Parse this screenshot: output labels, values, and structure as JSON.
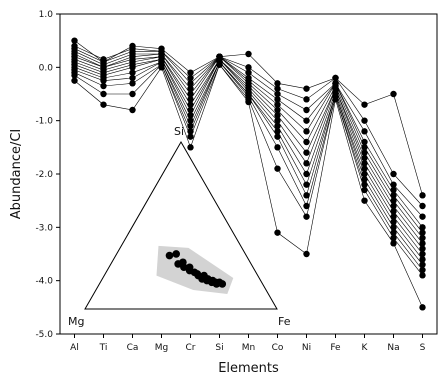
{
  "chart_data": [
    {
      "type": "line",
      "title": "",
      "xlabel": "Elements",
      "ylabel": "Abundance/CI",
      "categories": [
        "Al",
        "Ti",
        "Ca",
        "Mg",
        "Cr",
        "Si",
        "Mn",
        "Co",
        "Ni",
        "Fe",
        "K",
        "Na",
        "S"
      ],
      "ylim": [
        -5.0,
        1.0
      ],
      "yticks": [
        "1.0",
        "0.0",
        "-1.0",
        "-2.0",
        "-3.0",
        "-4.0",
        "-5.0"
      ],
      "grid": false,
      "legend": "none",
      "series_color": "#000000",
      "series": [
        {
          "values": [
            0.5,
            0.1,
            0.4,
            0.35,
            -0.1,
            0.2,
            0.25,
            -0.3,
            -0.4,
            -0.2,
            -0.7,
            -0.5,
            -2.4
          ]
        },
        {
          "values": [
            0.4,
            0.15,
            0.35,
            0.3,
            -0.2,
            0.2,
            0.0,
            -0.4,
            -0.6,
            -0.2,
            -1.0,
            -2.0,
            -2.6
          ]
        },
        {
          "values": [
            0.35,
            0.1,
            0.3,
            0.3,
            -0.3,
            0.2,
            -0.1,
            -0.5,
            -0.8,
            -0.3,
            -1.2,
            -2.2,
            -2.8
          ]
        },
        {
          "values": [
            0.3,
            0.05,
            0.25,
            0.25,
            -0.4,
            0.2,
            -0.2,
            -0.6,
            -1.0,
            -0.3,
            -1.4,
            -2.3,
            -3.0
          ]
        },
        {
          "values": [
            0.25,
            0.0,
            0.2,
            0.25,
            -0.5,
            0.2,
            -0.25,
            -0.7,
            -1.2,
            -0.3,
            -1.5,
            -2.4,
            -3.1
          ]
        },
        {
          "values": [
            0.2,
            0.0,
            0.15,
            0.2,
            -0.6,
            0.2,
            -0.3,
            -0.8,
            -1.4,
            -0.35,
            -1.6,
            -2.5,
            -3.2
          ]
        },
        {
          "values": [
            0.15,
            -0.05,
            0.1,
            0.2,
            -0.7,
            0.15,
            -0.35,
            -0.9,
            -1.6,
            -0.4,
            -1.7,
            -2.6,
            -3.3
          ]
        },
        {
          "values": [
            0.1,
            -0.1,
            0.05,
            0.15,
            -0.8,
            0.15,
            -0.4,
            -1.0,
            -1.8,
            -0.4,
            -1.8,
            -2.7,
            -3.4
          ]
        },
        {
          "values": [
            0.05,
            -0.15,
            0.0,
            0.15,
            -0.9,
            0.15,
            -0.45,
            -1.1,
            -2.0,
            -0.45,
            -1.9,
            -2.8,
            -3.5
          ]
        },
        {
          "values": [
            0.0,
            -0.2,
            -0.1,
            0.1,
            -1.0,
            0.1,
            -0.5,
            -1.2,
            -2.2,
            -0.5,
            -2.0,
            -2.9,
            -3.6
          ]
        },
        {
          "values": [
            -0.05,
            -0.25,
            -0.2,
            0.1,
            -1.1,
            0.1,
            -0.5,
            -1.3,
            -2.4,
            -0.5,
            -2.1,
            -3.0,
            -3.7
          ]
        },
        {
          "values": [
            -0.1,
            -0.35,
            -0.3,
            0.05,
            -1.2,
            0.1,
            -0.55,
            -1.5,
            -2.6,
            -0.55,
            -2.2,
            -3.1,
            -3.8
          ]
        },
        {
          "values": [
            -0.15,
            -0.5,
            -0.5,
            0.05,
            -1.3,
            0.05,
            -0.6,
            -1.9,
            -2.8,
            -0.55,
            -2.3,
            -3.2,
            -3.9
          ]
        },
        {
          "values": [
            -0.25,
            -0.7,
            -0.8,
            0.0,
            -1.5,
            0.05,
            -0.65,
            -3.1,
            -3.5,
            -0.6,
            -2.5,
            -3.3,
            -4.5
          ]
        }
      ]
    },
    {
      "type": "scatter",
      "subtype": "ternary",
      "vertices": [
        "Si",
        "Mg",
        "Fe"
      ],
      "points": [
        {
          "Si": 0.32,
          "Mg": 0.4,
          "Fe": 0.28
        },
        {
          "Si": 0.33,
          "Mg": 0.36,
          "Fe": 0.31
        },
        {
          "Si": 0.27,
          "Mg": 0.38,
          "Fe": 0.35
        },
        {
          "Si": 0.28,
          "Mg": 0.35,
          "Fe": 0.37
        },
        {
          "Si": 0.25,
          "Mg": 0.36,
          "Fe": 0.39
        },
        {
          "Si": 0.25,
          "Mg": 0.33,
          "Fe": 0.42
        },
        {
          "Si": 0.23,
          "Mg": 0.34,
          "Fe": 0.43
        },
        {
          "Si": 0.22,
          "Mg": 0.32,
          "Fe": 0.46
        },
        {
          "Si": 0.21,
          "Mg": 0.31,
          "Fe": 0.48
        },
        {
          "Si": 0.2,
          "Mg": 0.31,
          "Fe": 0.49
        },
        {
          "Si": 0.2,
          "Mg": 0.28,
          "Fe": 0.52
        },
        {
          "Si": 0.18,
          "Mg": 0.3,
          "Fe": 0.52
        },
        {
          "Si": 0.18,
          "Mg": 0.27,
          "Fe": 0.55
        },
        {
          "Si": 0.17,
          "Mg": 0.28,
          "Fe": 0.55
        },
        {
          "Si": 0.16,
          "Mg": 0.26,
          "Fe": 0.58
        },
        {
          "Si": 0.17,
          "Mg": 0.25,
          "Fe": 0.58
        },
        {
          "Si": 0.16,
          "Mg": 0.24,
          "Fe": 0.6
        },
        {
          "Si": 0.15,
          "Mg": 0.24,
          "Fe": 0.61
        },
        {
          "Si": 0.16,
          "Mg": 0.22,
          "Fe": 0.62
        },
        {
          "Si": 0.15,
          "Mg": 0.21,
          "Fe": 0.64
        }
      ],
      "field_color": "#d3d3d3",
      "point_color": "#000000"
    }
  ]
}
